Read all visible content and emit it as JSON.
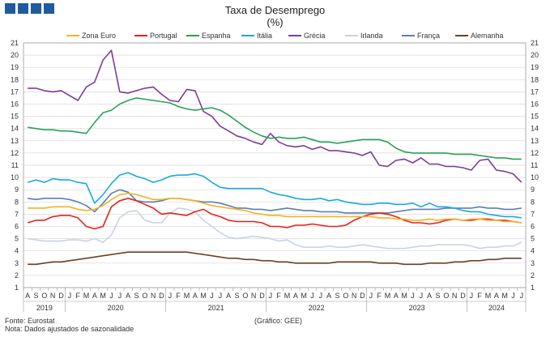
{
  "logo": {
    "name": "institution-logo"
  },
  "chart_data": {
    "type": "line",
    "title": "Taxa de Desemprego",
    "subtitle": "(%)",
    "ylim": [
      1,
      21
    ],
    "yticks": [
      1,
      2,
      3,
      4,
      5,
      6,
      7,
      8,
      9,
      10,
      11,
      12,
      13,
      14,
      15,
      16,
      17,
      18,
      19,
      20,
      21
    ],
    "grid": true,
    "legend_position": "top",
    "month_labels": [
      "A",
      "S",
      "O",
      "N",
      "D",
      "J",
      "F",
      "M",
      "A",
      "M",
      "J",
      "J",
      "A",
      "S",
      "O",
      "N",
      "D",
      "J",
      "F",
      "M",
      "A",
      "M",
      "J",
      "J",
      "A",
      "S",
      "O",
      "N",
      "D",
      "J",
      "F",
      "M",
      "A",
      "M",
      "J",
      "J",
      "A",
      "S",
      "O",
      "N",
      "D",
      "J",
      "F",
      "M",
      "A",
      "M",
      "J",
      "J",
      "A",
      "S",
      "O",
      "N",
      "D",
      "J",
      "F",
      "M",
      "A",
      "M",
      "J",
      "J"
    ],
    "years": [
      {
        "label": "2019",
        "start": 0,
        "end": 4
      },
      {
        "label": "2020",
        "start": 5,
        "end": 16
      },
      {
        "label": "2021",
        "start": 17,
        "end": 28
      },
      {
        "label": "2022",
        "start": 29,
        "end": 40
      },
      {
        "label": "2023",
        "start": 41,
        "end": 52
      },
      {
        "label": "2024",
        "start": 53,
        "end": 59
      }
    ],
    "series": [
      {
        "name": "Zona Euro",
        "color": "#f0b323",
        "values": [
          7.5,
          7.5,
          7.5,
          7.6,
          7.6,
          7.6,
          7.4,
          7.3,
          7.4,
          7.7,
          8.2,
          8.6,
          8.7,
          8.6,
          8.4,
          8.2,
          8.2,
          8.3,
          8.3,
          8.2,
          8.1,
          7.9,
          7.7,
          7.6,
          7.5,
          7.4,
          7.3,
          7.1,
          7.0,
          6.9,
          6.9,
          6.8,
          6.8,
          6.8,
          6.8,
          6.8,
          6.8,
          6.8,
          6.8,
          6.8,
          6.8,
          6.8,
          6.7,
          6.7,
          6.6,
          6.6,
          6.5,
          6.5,
          6.6,
          6.5,
          6.6,
          6.6,
          6.5,
          6.6,
          6.6,
          6.5,
          6.5,
          6.4,
          6.4,
          6.3
        ]
      },
      {
        "name": "Portugal",
        "color": "#e2231a",
        "values": [
          6.3,
          6.5,
          6.5,
          6.8,
          6.9,
          6.9,
          6.7,
          6.0,
          5.8,
          6.0,
          7.6,
          8.1,
          8.3,
          8.1,
          7.8,
          7.5,
          7.0,
          7.1,
          7.0,
          6.9,
          7.2,
          7.4,
          7.0,
          6.8,
          6.5,
          6.4,
          6.4,
          6.4,
          6.3,
          6.0,
          6.0,
          5.9,
          6.1,
          6.1,
          6.2,
          6.1,
          6.0,
          6.0,
          6.1,
          6.5,
          6.8,
          7.0,
          7.1,
          7.0,
          6.8,
          6.5,
          6.3,
          6.3,
          6.2,
          6.3,
          6.5,
          6.6,
          6.5,
          6.5,
          6.6,
          6.6,
          6.5,
          6.5,
          6.4,
          6.3
        ]
      },
      {
        "name": "Espanha",
        "color": "#2aa05a",
        "values": [
          14.1,
          14.0,
          13.9,
          13.9,
          13.8,
          13.8,
          13.7,
          13.6,
          14.5,
          15.3,
          15.5,
          16.0,
          16.3,
          16.5,
          16.4,
          16.3,
          16.2,
          16.1,
          15.8,
          15.6,
          15.5,
          15.6,
          15.7,
          15.5,
          15.1,
          14.6,
          14.1,
          13.7,
          13.4,
          13.2,
          13.3,
          13.2,
          13.2,
          13.3,
          13.1,
          12.9,
          12.9,
          12.8,
          12.9,
          13.0,
          13.1,
          13.1,
          13.1,
          12.9,
          12.4,
          12.1,
          12.0,
          12.0,
          12.0,
          12.0,
          12.0,
          11.9,
          11.9,
          11.9,
          11.8,
          11.7,
          11.6,
          11.6,
          11.5,
          11.5
        ]
      },
      {
        "name": "Itália",
        "color": "#1ba8e0",
        "values": [
          9.6,
          9.8,
          9.6,
          9.9,
          9.8,
          9.8,
          9.6,
          9.5,
          7.9,
          8.6,
          9.5,
          10.2,
          10.4,
          10.1,
          9.9,
          9.6,
          9.8,
          10.1,
          10.2,
          10.2,
          10.3,
          10.1,
          9.6,
          9.2,
          9.1,
          9.1,
          9.1,
          9.1,
          9.1,
          8.8,
          8.6,
          8.5,
          8.3,
          8.2,
          8.2,
          8.3,
          8.1,
          8.2,
          8.0,
          7.9,
          7.8,
          7.8,
          7.9,
          7.9,
          7.8,
          7.8,
          7.9,
          7.6,
          7.9,
          7.6,
          7.6,
          7.5,
          7.3,
          7.2,
          7.2,
          7.0,
          6.9,
          6.8,
          6.8,
          6.7
        ]
      },
      {
        "name": "Grécia",
        "color": "#7d3c98",
        "values": [
          17.3,
          17.3,
          17.1,
          17.0,
          17.1,
          16.7,
          16.3,
          17.4,
          17.8,
          19.6,
          20.4,
          17.0,
          16.9,
          17.1,
          17.3,
          17.4,
          16.8,
          16.3,
          16.2,
          17.2,
          17.1,
          15.4,
          15.0,
          14.2,
          13.8,
          13.4,
          13.2,
          12.9,
          12.7,
          13.6,
          12.9,
          12.6,
          12.5,
          12.6,
          12.3,
          12.5,
          12.2,
          12.2,
          12.1,
          12.0,
          11.8,
          12.1,
          11.0,
          10.9,
          11.4,
          11.5,
          11.2,
          11.6,
          11.1,
          11.1,
          10.9,
          10.9,
          10.8,
          10.6,
          11.4,
          11.5,
          10.6,
          10.5,
          10.3,
          9.6
        ]
      },
      {
        "name": "Irlanda",
        "color": "#c9d3e0",
        "values": [
          5.0,
          4.9,
          4.8,
          4.8,
          4.8,
          4.9,
          4.9,
          4.8,
          5.0,
          4.7,
          5.3,
          6.7,
          7.2,
          7.3,
          6.5,
          6.3,
          6.3,
          7.1,
          7.5,
          7.4,
          7.2,
          6.5,
          6.0,
          5.5,
          5.1,
          5.0,
          5.1,
          5.2,
          5.1,
          5.0,
          4.8,
          4.9,
          4.5,
          4.3,
          4.3,
          4.3,
          4.4,
          4.3,
          4.3,
          4.4,
          4.5,
          4.4,
          4.3,
          4.2,
          4.2,
          4.2,
          4.3,
          4.4,
          4.4,
          4.5,
          4.5,
          4.5,
          4.5,
          4.4,
          4.2,
          4.3,
          4.3,
          4.4,
          4.4,
          4.7
        ]
      },
      {
        "name": "França",
        "color": "#5b7fb0",
        "values": [
          8.3,
          8.2,
          8.3,
          8.3,
          8.3,
          8.2,
          8.0,
          7.7,
          7.2,
          7.9,
          8.7,
          9.0,
          8.8,
          8.1,
          8.0,
          8.0,
          8.1,
          8.3,
          8.3,
          8.2,
          8.1,
          8.0,
          8.0,
          7.9,
          7.7,
          7.5,
          7.5,
          7.4,
          7.4,
          7.3,
          7.4,
          7.5,
          7.4,
          7.3,
          7.3,
          7.2,
          7.2,
          7.2,
          7.1,
          7.1,
          7.1,
          7.1,
          7.1,
          7.1,
          7.2,
          7.3,
          7.4,
          7.4,
          7.4,
          7.4,
          7.5,
          7.5,
          7.5,
          7.5,
          7.6,
          7.5,
          7.5,
          7.4,
          7.4,
          7.5
        ]
      },
      {
        "name": "Alemanha",
        "color": "#6b4226",
        "values": [
          2.9,
          2.9,
          3.0,
          3.1,
          3.1,
          3.2,
          3.3,
          3.4,
          3.5,
          3.6,
          3.7,
          3.8,
          3.9,
          3.9,
          3.9,
          3.9,
          3.9,
          3.9,
          3.9,
          3.9,
          3.8,
          3.7,
          3.6,
          3.5,
          3.4,
          3.4,
          3.3,
          3.3,
          3.2,
          3.2,
          3.1,
          3.1,
          3.0,
          3.0,
          3.0,
          3.0,
          3.0,
          3.1,
          3.1,
          3.1,
          3.1,
          3.1,
          3.0,
          3.0,
          3.0,
          2.9,
          2.9,
          2.9,
          3.0,
          3.0,
          3.0,
          3.1,
          3.1,
          3.2,
          3.2,
          3.3,
          3.3,
          3.4,
          3.4,
          3.4
        ]
      }
    ]
  },
  "footer": {
    "source": "Fonte: Eurostat",
    "note": "Nota: Dados ajustados de sazonalidade",
    "credit": "(Gráfico: GEE)"
  }
}
